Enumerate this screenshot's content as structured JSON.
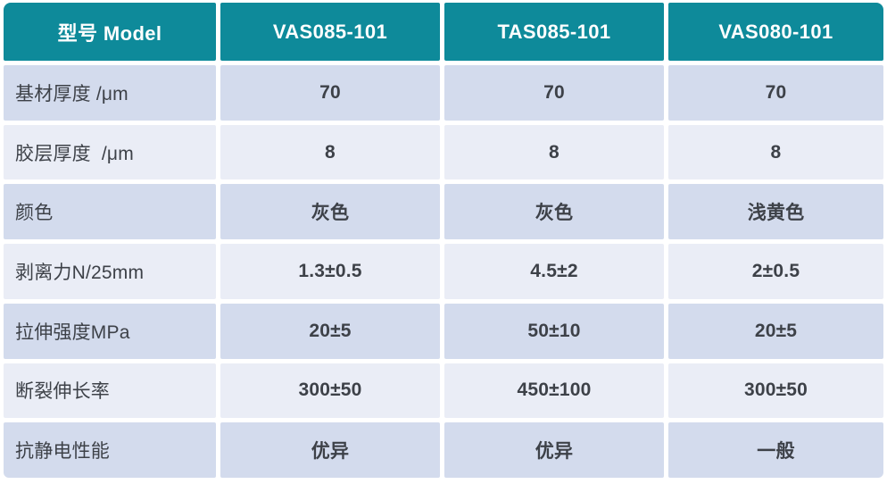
{
  "colors": {
    "header_bg": "#0e8a9a",
    "header_text": "#ffffff",
    "row_odd_bg": "#d3dbed",
    "row_even_bg": "#eaedf6",
    "body_text": "#3d4148"
  },
  "table": {
    "header": [
      "型号 Model",
      "VAS085-101",
      "TAS085-101",
      "VAS080-101"
    ],
    "rows": [
      {
        "label": "基材厚度 /μm",
        "values": [
          "70",
          "70",
          "70"
        ]
      },
      {
        "label": "胶层厚度  /μm",
        "values": [
          "8",
          "8",
          "8"
        ]
      },
      {
        "label": "颜色",
        "values": [
          "灰色",
          "灰色",
          "浅黄色"
        ]
      },
      {
        "label": "剥离力N/25mm",
        "values": [
          "1.3±0.5",
          "4.5±2",
          "2±0.5"
        ]
      },
      {
        "label": "拉伸强度MPa",
        "values": [
          "20±5",
          "50±10",
          "20±5"
        ]
      },
      {
        "label": "断裂伸长率",
        "values": [
          "300±50",
          "450±100",
          "300±50"
        ]
      },
      {
        "label": "抗静电性能",
        "values": [
          "优异",
          "优异",
          "一般"
        ]
      }
    ]
  }
}
